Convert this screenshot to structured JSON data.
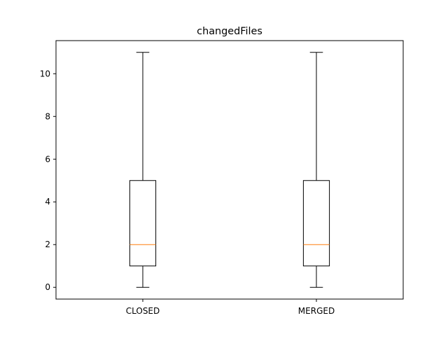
{
  "chart_data": {
    "type": "boxplot",
    "title": "changedFiles",
    "xlabel": "",
    "ylabel": "",
    "ylim": [
      -0.55,
      11.55
    ],
    "yticks": [
      0,
      2,
      4,
      6,
      8,
      10
    ],
    "grid": false,
    "categories": [
      "CLOSED",
      "MERGED"
    ],
    "boxes": [
      {
        "category": "CLOSED",
        "whisker_low": 0,
        "q1": 1,
        "median": 2,
        "q3": 5,
        "whisker_high": 11
      },
      {
        "category": "MERGED",
        "whisker_low": 0,
        "q1": 1,
        "median": 2,
        "q3": 5,
        "whisker_high": 11
      }
    ],
    "colors": {
      "box": "#000000",
      "median": "#ff7f0e",
      "background": "#ffffff"
    }
  }
}
